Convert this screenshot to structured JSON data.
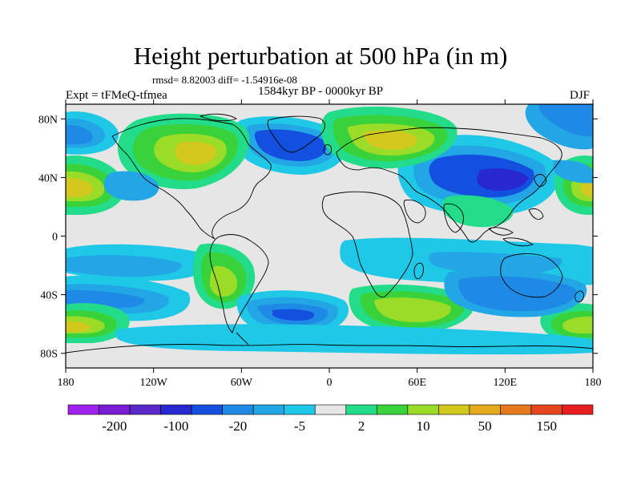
{
  "header": {
    "title": "Height perturbation at 500 hPa (in m)",
    "stats": "rmsd= 8.82003 diff= -1.54916e-08",
    "experiment": "Expt = tFMeQ-tfmea",
    "period": "1584kyr BP - 0000kyr BP",
    "season": "DJF"
  },
  "map": {
    "lat_ticks": [
      {
        "label": "80N",
        "value": 80
      },
      {
        "label": "40N",
        "value": 40
      },
      {
        "label": "0",
        "value": 0
      },
      {
        "label": "40S",
        "value": -40
      },
      {
        "label": "80S",
        "value": -80
      }
    ],
    "lon_ticks": [
      {
        "label": "180",
        "value": -180
      },
      {
        "label": "120W",
        "value": -120
      },
      {
        "label": "60W",
        "value": -60
      },
      {
        "label": "0",
        "value": 0
      },
      {
        "label": "60E",
        "value": 60
      },
      {
        "label": "120E",
        "value": 120
      },
      {
        "label": "180",
        "value": 180
      }
    ]
  },
  "colorbar": {
    "colors": [
      "#a020f0",
      "#7a1cd6",
      "#5a28c8",
      "#2828d0",
      "#1450e0",
      "#1f8ae6",
      "#22a6e6",
      "#1ec8e6",
      "#e6e6e6",
      "#22dc8a",
      "#3ad23a",
      "#9adc28",
      "#d2c81e",
      "#e6aa1e",
      "#e6781e",
      "#e6461e",
      "#e61e1e"
    ],
    "labels": [
      {
        "text": "-200",
        "index": 1
      },
      {
        "text": "-100",
        "index": 3
      },
      {
        "text": "-20",
        "index": 5
      },
      {
        "text": "-5",
        "index": 7
      },
      {
        "text": "2",
        "index": 9
      },
      {
        "text": "10",
        "index": 11
      },
      {
        "text": "50",
        "index": 13
      },
      {
        "text": "150",
        "index": 15
      }
    ]
  }
}
